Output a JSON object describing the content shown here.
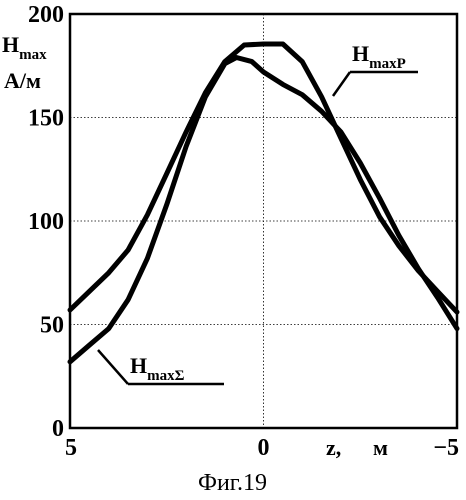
{
  "chart_data": {
    "type": "line",
    "title": "",
    "caption": "Фиг.19",
    "ylabel": {
      "main": "H",
      "sub": "max",
      "unit": "А/м"
    },
    "xlabel": {
      "main": "z,",
      "unit": "м"
    },
    "xlim": [
      5,
      -5
    ],
    "ylim": [
      0,
      200
    ],
    "x_ticks": [
      {
        "value": 5,
        "label": "5"
      },
      {
        "value": 0,
        "label": "0"
      },
      {
        "value": -5,
        "label": "−5"
      }
    ],
    "y_ticks": [
      {
        "value": 0,
        "label": "0"
      },
      {
        "value": 50,
        "label": "50"
      },
      {
        "value": 100,
        "label": "100"
      },
      {
        "value": 150,
        "label": "150"
      },
      {
        "value": 200,
        "label": "200"
      }
    ],
    "grid": true,
    "series": [
      {
        "name": "HmaxP",
        "label": {
          "main": "H",
          "sub": "maxP"
        },
        "points": [
          [
            5,
            57
          ],
          [
            4.5,
            66
          ],
          [
            4,
            75
          ],
          [
            3.5,
            86
          ],
          [
            3,
            103
          ],
          [
            2.5,
            123
          ],
          [
            2,
            143
          ],
          [
            1.5,
            162
          ],
          [
            1,
            177
          ],
          [
            0.5,
            185
          ],
          [
            0,
            185.5
          ],
          [
            -0.5,
            185.5
          ],
          [
            -1,
            177
          ],
          [
            -1.5,
            160
          ],
          [
            -2,
            140
          ],
          [
            -2.5,
            120
          ],
          [
            -3,
            102
          ],
          [
            -3.5,
            88
          ],
          [
            -4,
            76
          ],
          [
            -4.5,
            66
          ],
          [
            -5,
            56
          ]
        ]
      },
      {
        "name": "HmaxΣ",
        "label": {
          "main": "H",
          "sub": "maxΣ"
        },
        "points": [
          [
            5,
            32
          ],
          [
            4.5,
            40
          ],
          [
            4,
            48
          ],
          [
            3.5,
            62
          ],
          [
            3,
            82
          ],
          [
            2.5,
            108
          ],
          [
            2,
            136
          ],
          [
            1.5,
            160
          ],
          [
            1,
            176
          ],
          [
            0.7,
            179
          ],
          [
            0.3,
            177
          ],
          [
            0,
            172
          ],
          [
            -0.5,
            166
          ],
          [
            -1,
            161
          ],
          [
            -1.5,
            153
          ],
          [
            -2,
            143
          ],
          [
            -2.5,
            128
          ],
          [
            -3,
            111
          ],
          [
            -3.5,
            93
          ],
          [
            -4,
            77
          ],
          [
            -4.5,
            63
          ],
          [
            -5,
            48
          ]
        ]
      }
    ]
  }
}
